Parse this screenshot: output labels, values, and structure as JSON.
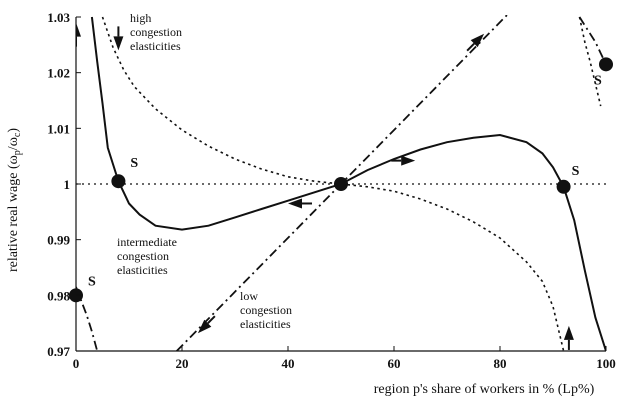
{
  "chart_data": {
    "type": "line",
    "xlabel": "region p's share of workers in % (Lp%)",
    "ylabel": "relative real wage (ω_p/ω_c)",
    "ylabel_main": "relative real wage (ω",
    "ylabel_sub1": "p",
    "ylabel_mid": "/ω",
    "ylabel_sub2": "c",
    "ylabel_end": ")",
    "xlim": [
      0,
      100
    ],
    "ylim": [
      0.97,
      1.03
    ],
    "x_ticks": [
      "0",
      "20",
      "40",
      "60",
      "80",
      "100"
    ],
    "y_ticks": [
      "0.97",
      "0.98",
      "0.99",
      "1",
      "1.01",
      "1.02",
      "1.03"
    ],
    "reference_line_y": 1,
    "annotations": [
      {
        "lines": [
          "high",
          "congestion",
          "elasticities"
        ]
      },
      {
        "lines": [
          "intermediate",
          "congestion",
          "elasticities"
        ]
      },
      {
        "lines": [
          "low",
          "congestion",
          "elasticities"
        ]
      }
    ],
    "stable_label": "S",
    "stable_points": [
      {
        "x": 0,
        "y": 0.98
      },
      {
        "x": 8,
        "y": 1.0005
      },
      {
        "x": 50,
        "y": 1.0
      },
      {
        "x": 92,
        "y": 0.9995
      },
      {
        "x": 100,
        "y": 1.0215
      }
    ],
    "series": [
      {
        "style": "dotted",
        "x": [
          5,
          7,
          9,
          11,
          15,
          20,
          25,
          30,
          35,
          40,
          45,
          50,
          55,
          60,
          65,
          70,
          75,
          80,
          85,
          88,
          90,
          92
        ],
        "y": [
          1.03,
          1.0245,
          1.0205,
          1.0175,
          1.0135,
          1.0097,
          1.0068,
          1.0045,
          1.0027,
          1.0013,
          1.0005,
          1.0,
          0.9995,
          0.9987,
          0.9973,
          0.9955,
          0.9932,
          0.9903,
          0.986,
          0.9825,
          0.978,
          0.97
        ]
      },
      {
        "style": "dotted",
        "x": [
          95,
          96,
          97,
          98,
          99
        ],
        "y": [
          1.03,
          1.0255,
          1.022,
          1.018,
          1.014
        ]
      },
      {
        "style": "solid",
        "x": [
          3,
          4,
          5,
          6,
          7,
          8,
          9,
          10,
          12,
          15,
          20,
          25,
          30,
          35,
          40,
          45,
          50,
          55,
          60,
          65,
          70,
          75,
          80,
          85,
          88,
          90,
          92,
          94,
          96,
          98,
          100
        ],
        "y": [
          1.03,
          1.022,
          1.0145,
          1.0065,
          1.0035,
          1.0005,
          0.9985,
          0.9965,
          0.9945,
          0.9925,
          0.9918,
          0.9925,
          0.994,
          0.9955,
          0.997,
          0.9985,
          1.0,
          1.0025,
          1.0045,
          1.0062,
          1.0075,
          1.0083,
          1.0088,
          1.0075,
          1.0055,
          1.003,
          0.9995,
          0.9935,
          0.9845,
          0.976,
          0.97
        ]
      },
      {
        "style": "dashdot",
        "x": [
          0,
          1,
          2,
          3,
          4
        ],
        "y": [
          0.9815,
          0.979,
          0.9765,
          0.9735,
          0.97
        ]
      },
      {
        "style": "dashdot",
        "x": [
          19,
          50,
          82
        ],
        "y": [
          0.97,
          1.0,
          1.031
        ]
      },
      {
        "style": "dashdot",
        "x": [
          95,
          96,
          97,
          98,
          99,
          100
        ],
        "y": [
          1.03,
          1.0285,
          1.027,
          1.0255,
          1.0235,
          1.0215
        ]
      }
    ],
    "arrows": [
      {
        "x": 8,
        "y": 1.024,
        "dir": "down"
      },
      {
        "x": 0,
        "y": 1.029,
        "dir": "up"
      },
      {
        "x": 40,
        "y": 0.9965,
        "dir": "left"
      },
      {
        "x": 64,
        "y": 1.0042,
        "dir": "right"
      },
      {
        "x": 77,
        "y": 1.027,
        "dir": "up-right"
      },
      {
        "x": 23,
        "y": 0.9732,
        "dir": "down-left"
      },
      {
        "x": 93,
        "y": 0.9745,
        "dir": "up"
      }
    ]
  }
}
